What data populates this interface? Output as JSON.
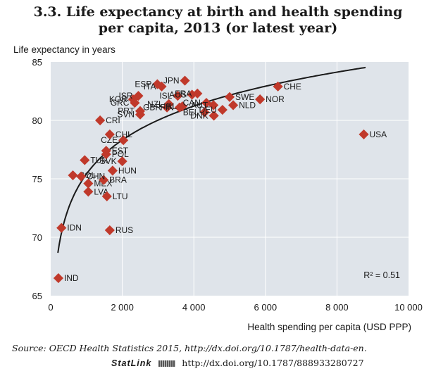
{
  "title_line1": "3.3. Life expectancy at birth and health spending",
  "title_line2": "per capita, 2013 (or latest year)",
  "source_text": "Source: OECD Health Statistics 2015, http://dx.doi.org/10.1787/health-data-en.",
  "statlink_label": "StatLink",
  "statlink_url": "http://dx.doi.org/10.1787/888933280727",
  "colors": {
    "plot_bg": "#dfe4ea",
    "marker": "#c0392b",
    "curve": "#1a1a1a",
    "grid": "#ffffff"
  },
  "chart_data": {
    "type": "scatter",
    "xlabel": "Health spending per capita (USD PPP)",
    "ylabel": "Life expectancy in years",
    "xlim": [
      0,
      10000
    ],
    "ylim": [
      65,
      85
    ],
    "xticks": [
      0,
      2000,
      4000,
      6000,
      8000,
      10000
    ],
    "xtick_labels": [
      "0",
      "2 000",
      "4 000",
      "6 000",
      "8 000",
      "10 000"
    ],
    "yticks": [
      65,
      70,
      75,
      80,
      85
    ],
    "ytick_labels": [
      "65",
      "70",
      "75",
      "80",
      "85"
    ],
    "grid": true,
    "annotation": "R² = 0.51",
    "trendline": "logarithmic",
    "points": [
      {
        "label": "IND",
        "x": 215,
        "y": 66.5
      },
      {
        "label": "IDN",
        "x": 300,
        "y": 70.8
      },
      {
        "label": "RUS",
        "x": 1650,
        "y": 70.6
      },
      {
        "label": "LVA",
        "x": 1050,
        "y": 73.9
      },
      {
        "label": "LTU",
        "x": 1570,
        "y": 73.5
      },
      {
        "label": "MEX",
        "x": 1050,
        "y": 74.6
      },
      {
        "label": "BRA",
        "x": 1480,
        "y": 74.9
      },
      {
        "label": "HUN",
        "x": 1730,
        "y": 75.7
      },
      {
        "label": "COL",
        "x": 620,
        "y": 75.3
      },
      {
        "label": "CHN",
        "x": 850,
        "y": 75.2
      },
      {
        "label": "SVK",
        "x": 2000,
        "y": 76.5
      },
      {
        "label": "TUR",
        "x": 950,
        "y": 76.6
      },
      {
        "label": "POL",
        "x": 1550,
        "y": 77.1
      },
      {
        "label": "EST",
        "x": 1550,
        "y": 77.4
      },
      {
        "label": "CZE",
        "x": 2030,
        "y": 78.3
      },
      {
        "label": "CHL",
        "x": 1650,
        "y": 78.8
      },
      {
        "label": "CRI",
        "x": 1380,
        "y": 80.0
      },
      {
        "label": "SVN",
        "x": 2500,
        "y": 80.5
      },
      {
        "label": "PRT",
        "x": 2500,
        "y": 80.8
      },
      {
        "label": "GRC",
        "x": 2350,
        "y": 81.5
      },
      {
        "label": "KOR",
        "x": 2300,
        "y": 81.8
      },
      {
        "label": "ISR",
        "x": 2450,
        "y": 82.1
      },
      {
        "label": "GBR",
        "x": 3250,
        "y": 81.1
      },
      {
        "label": "NZL",
        "x": 3300,
        "y": 81.4
      },
      {
        "label": "ESP",
        "x": 2980,
        "y": 83.1
      },
      {
        "label": "ITA",
        "x": 3100,
        "y": 82.9
      },
      {
        "label": "JPN",
        "x": 3750,
        "y": 83.4
      },
      {
        "label": "FIN",
        "x": 3600,
        "y": 81.1
      },
      {
        "label": "IRL",
        "x": 3680,
        "y": 81.2
      },
      {
        "label": "ISL",
        "x": 3550,
        "y": 82.1
      },
      {
        "label": "AUS",
        "x": 3950,
        "y": 82.2
      },
      {
        "label": "CAN",
        "x": 4350,
        "y": 81.5
      },
      {
        "label": "FRA",
        "x": 4100,
        "y": 82.3
      },
      {
        "label": "BEL",
        "x": 4300,
        "y": 80.7
      },
      {
        "label": "AUT",
        "x": 4550,
        "y": 81.3
      },
      {
        "label": "DNK",
        "x": 4560,
        "y": 80.4
      },
      {
        "label": "SWE",
        "x": 5000,
        "y": 82.0
      },
      {
        "label": "DEU",
        "x": 4800,
        "y": 80.9
      },
      {
        "label": "NLD",
        "x": 5100,
        "y": 81.3
      },
      {
        "label": "NOR",
        "x": 5850,
        "y": 81.8
      },
      {
        "label": "CHE",
        "x": 6350,
        "y": 82.9
      },
      {
        "label": "USA",
        "x": 8750,
        "y": 78.8
      }
    ]
  }
}
